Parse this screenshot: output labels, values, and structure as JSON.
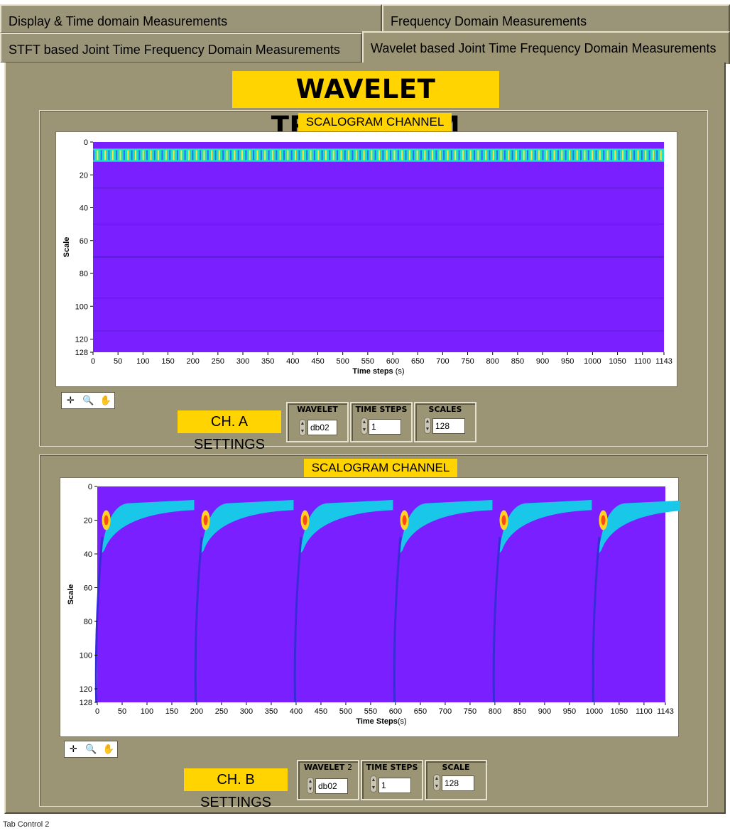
{
  "tabs": [
    {
      "label": "Display & Time domain Measurements"
    },
    {
      "label": "Frequency Domain Measurements"
    },
    {
      "label": "STFT based Joint Time Frequency Domain Measurements"
    },
    {
      "label": "Wavelet based Joint Time Frequency Domain Measurements"
    }
  ],
  "page_title": "WAVELET TRANSFORM",
  "footer": "Tab Control 2",
  "colors": {
    "panel": "#9b9576",
    "highlight": "#ffd400",
    "scalogram_bg": "#7a1fff"
  },
  "channel_a": {
    "title": "SCALOGRAM CHANNEL A",
    "ylabel": "Scale",
    "xlabel_main": "Time steps",
    "xlabel_unit": " (s)",
    "yticks": [
      "0",
      "20",
      "40",
      "60",
      "80",
      "100",
      "120",
      "128"
    ],
    "xticks": [
      "0",
      "50",
      "100",
      "150",
      "200",
      "250",
      "300",
      "350",
      "400",
      "450",
      "500",
      "550",
      "600",
      "650",
      "700",
      "750",
      "800",
      "850",
      "900",
      "950",
      "1000",
      "1050",
      "1100",
      "1143"
    ],
    "settings_label": "CH. A SETTINGS",
    "controls": [
      {
        "label": "WAVELET",
        "value": "db02"
      },
      {
        "label": "TIME STEPS",
        "value": "1"
      },
      {
        "label": "SCALES",
        "value": "128"
      }
    ]
  },
  "channel_b": {
    "title": "SCALOGRAM CHANNEL B",
    "ylabel": "Scale",
    "xlabel_main": "Time Steps",
    "xlabel_unit": "(s)",
    "yticks": [
      "0",
      "20",
      "40",
      "60",
      "80",
      "100",
      "120",
      "128"
    ],
    "xticks": [
      "0",
      "50",
      "100",
      "150",
      "200",
      "250",
      "300",
      "350",
      "400",
      "450",
      "500",
      "550",
      "600",
      "650",
      "700",
      "750",
      "800",
      "850",
      "900",
      "950",
      "1000",
      "1050",
      "1100",
      "1143"
    ],
    "settings_label": "CH. B SETTINGS",
    "controls": [
      {
        "label": "WAVELET",
        "label_suffix": "2",
        "value": "db02"
      },
      {
        "label": "TIME STEPS",
        "value": "1"
      },
      {
        "label": "SCALE",
        "value": "128"
      }
    ]
  },
  "graph_tools": [
    "cursor-tool-icon",
    "zoom-tool-icon",
    "pan-hand-icon"
  ]
}
